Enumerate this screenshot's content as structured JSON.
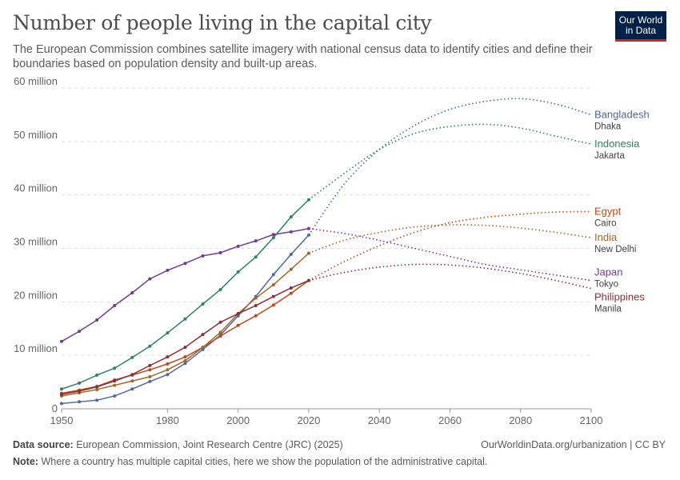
{
  "header": {
    "title": "Number of people living in the capital city",
    "subtitle": "The European Commission combines satellite imagery with national census data to identify cities and define their boundaries based on population density and built-up areas.",
    "logo": "Our World in Data"
  },
  "footer": {
    "source_label": "Data source:",
    "source": "European Commission, Joint Research Centre (JRC) (2025)",
    "url": "OurWorldinData.org/urbanization | CC BY",
    "note_label": "Note:",
    "note": "Where a country has multiple capital cities, here we show the population of the administrative capital."
  },
  "chart_data": {
    "type": "line",
    "xlim": [
      1950,
      2100
    ],
    "ylim": [
      0,
      60
    ],
    "x_ticks": [
      1950,
      1980,
      2000,
      2020,
      2040,
      2060,
      2080,
      2100
    ],
    "y_ticks": [
      {
        "v": 0,
        "label": "0"
      },
      {
        "v": 10,
        "label": "10 million"
      },
      {
        "v": 20,
        "label": "20 million"
      },
      {
        "v": 30,
        "label": "30 million"
      },
      {
        "v": 40,
        "label": "40 million"
      },
      {
        "v": 50,
        "label": "50 million"
      },
      {
        "v": 60,
        "label": "60 million"
      }
    ],
    "grid": "horizontal dashed",
    "legend": "right end-labels",
    "observed_x": [
      1950,
      1955,
      1960,
      1965,
      1970,
      1975,
      1980,
      1985,
      1990,
      1995,
      2000,
      2005,
      2010,
      2015,
      2020
    ],
    "projected_x": [
      2020,
      2030,
      2040,
      2050,
      2060,
      2070,
      2080,
      2090,
      2100
    ],
    "series": [
      {
        "name": "Bangladesh",
        "city": "Dhaka",
        "color": "#4c6a9c",
        "observed": [
          1.0,
          1.3,
          1.6,
          2.4,
          3.7,
          5.1,
          6.4,
          8.5,
          11.1,
          13.8,
          17.4,
          21.0,
          25.1,
          28.9,
          32.5
        ],
        "projected": [
          32.5,
          42,
          48.5,
          53,
          56,
          57.5,
          58,
          57,
          55
        ]
      },
      {
        "name": "Indonesia",
        "city": "Jakarta",
        "color": "#2c8465",
        "observed": [
          3.7,
          4.8,
          6.3,
          7.6,
          9.6,
          11.7,
          14.2,
          16.8,
          19.6,
          22.3,
          25.6,
          28.4,
          32.0,
          35.9,
          39.1
        ],
        "projected": [
          39.1,
          44,
          48.5,
          51.5,
          52.8,
          53.2,
          52.5,
          51,
          49.5
        ]
      },
      {
        "name": "Egypt",
        "city": "Cairo",
        "color": "#be4a16",
        "observed": [
          2.9,
          3.5,
          4.2,
          5.4,
          6.3,
          7.3,
          8.4,
          9.7,
          11.5,
          13.6,
          15.6,
          17.4,
          19.4,
          21.6,
          24.0
        ],
        "projected": [
          24.0,
          27.5,
          30.5,
          33,
          34.8,
          35.8,
          36.4,
          36.8,
          36.9
        ]
      },
      {
        "name": "India",
        "city": "New Delhi",
        "color": "#a2672d",
        "observed": [
          2.4,
          3.0,
          3.6,
          4.4,
          5.2,
          6.0,
          7.3,
          9.0,
          11.5,
          14.3,
          17.8,
          20.7,
          23.2,
          26.1,
          29.1
        ],
        "projected": [
          29.1,
          31.5,
          33,
          34,
          34.4,
          34.3,
          33.8,
          33,
          32
        ]
      },
      {
        "name": "Japan",
        "city": "Tokyo",
        "color": "#6d3e91",
        "observed": [
          12.6,
          14.5,
          16.6,
          19.3,
          21.7,
          24.3,
          25.9,
          27.2,
          28.6,
          29.2,
          30.4,
          31.4,
          32.6,
          33.1,
          33.7
        ],
        "projected": [
          33.7,
          32.8,
          31.5,
          30,
          28.5,
          27,
          26,
          25,
          24
        ]
      },
      {
        "name": "Philippines",
        "city": "Manila",
        "color": "#883039",
        "observed": [
          2.7,
          3.3,
          4.1,
          5.2,
          6.4,
          8.1,
          9.7,
          11.5,
          13.9,
          16.2,
          17.8,
          19.3,
          21.0,
          22.6,
          24.0
        ],
        "projected": [
          24.0,
          25.5,
          26.5,
          27,
          26.9,
          26.3,
          25.3,
          24,
          22.5
        ]
      }
    ]
  }
}
